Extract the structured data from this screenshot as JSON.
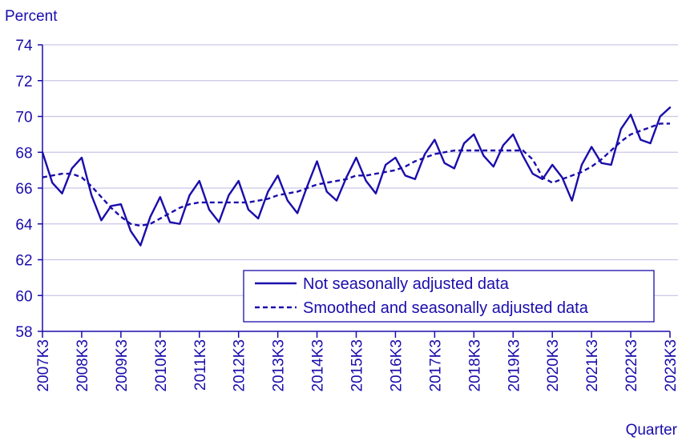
{
  "chart_data": {
    "type": "line",
    "ylabel": "Percent",
    "xlabel": "Quarter",
    "ylim": [
      58,
      74
    ],
    "yticks": [
      58,
      60,
      62,
      64,
      66,
      68,
      70,
      72,
      74
    ],
    "xticks": [
      "2007K3",
      "2008K3",
      "2009K3",
      "2010K3",
      "2011K3",
      "2012K3",
      "2013K3",
      "2014K3",
      "2015K3",
      "2016K3",
      "2017K3",
      "2018K3",
      "2019K3",
      "2020K3",
      "2021K3",
      "2022K3",
      "2023K3"
    ],
    "grid": "horizontal",
    "legend_position": "bottom-right",
    "x": [
      "2007K3",
      "2007K4",
      "2008K1",
      "2008K2",
      "2008K3",
      "2008K4",
      "2009K1",
      "2009K2",
      "2009K3",
      "2009K4",
      "2010K1",
      "2010K2",
      "2010K3",
      "2010K4",
      "2011K1",
      "2011K2",
      "2011K3",
      "2011K4",
      "2012K1",
      "2012K2",
      "2012K3",
      "2012K4",
      "2013K1",
      "2013K2",
      "2013K3",
      "2013K4",
      "2014K1",
      "2014K2",
      "2014K3",
      "2014K4",
      "2015K1",
      "2015K2",
      "2015K3",
      "2015K4",
      "2016K1",
      "2016K2",
      "2016K3",
      "2016K4",
      "2017K1",
      "2017K2",
      "2017K3",
      "2017K4",
      "2018K1",
      "2018K2",
      "2018K3",
      "2018K4",
      "2019K1",
      "2019K2",
      "2019K3",
      "2019K4",
      "2020K1",
      "2020K2",
      "2020K3",
      "2020K4",
      "2021K1",
      "2021K2",
      "2021K3",
      "2021K4",
      "2022K1",
      "2022K2",
      "2022K3",
      "2022K4",
      "2023K1",
      "2023K2",
      "2023K3"
    ],
    "series": [
      {
        "name": "Not seasonally adjusted data",
        "style": "solid",
        "color": "#1a0dab",
        "values": [
          68.0,
          66.3,
          65.7,
          67.1,
          67.7,
          65.6,
          64.2,
          65.0,
          65.1,
          63.6,
          62.8,
          64.4,
          65.5,
          64.1,
          64.0,
          65.6,
          66.4,
          64.8,
          64.1,
          65.6,
          66.4,
          64.8,
          64.3,
          65.8,
          66.7,
          65.3,
          64.6,
          66.1,
          67.5,
          65.8,
          65.3,
          66.6,
          67.7,
          66.4,
          65.7,
          67.3,
          67.7,
          66.7,
          66.5,
          67.9,
          68.7,
          67.4,
          67.1,
          68.5,
          69.0,
          67.8,
          67.2,
          68.4,
          69.0,
          67.8,
          66.8,
          66.5,
          67.3,
          66.6,
          65.3,
          67.3,
          68.3,
          67.4,
          67.3,
          69.3,
          70.1,
          68.7,
          68.5,
          70.0,
          70.5
        ]
      },
      {
        "name": "Smoothed and seasonally adjusted data",
        "style": "dashed",
        "color": "#1a0dab",
        "values": [
          66.6,
          66.7,
          66.8,
          66.8,
          66.6,
          66.1,
          65.5,
          64.9,
          64.4,
          64.0,
          63.9,
          64.0,
          64.3,
          64.6,
          64.9,
          65.1,
          65.2,
          65.2,
          65.2,
          65.2,
          65.2,
          65.2,
          65.3,
          65.4,
          65.6,
          65.7,
          65.8,
          66.0,
          66.2,
          66.3,
          66.4,
          66.5,
          66.7,
          66.7,
          66.8,
          66.9,
          67.0,
          67.2,
          67.5,
          67.7,
          67.9,
          68.0,
          68.1,
          68.1,
          68.1,
          68.1,
          68.1,
          68.1,
          68.1,
          68.1,
          67.6,
          66.6,
          66.3,
          66.5,
          66.7,
          66.9,
          67.2,
          67.6,
          68.1,
          68.6,
          69.0,
          69.2,
          69.4,
          69.6,
          69.6
        ]
      }
    ]
  }
}
